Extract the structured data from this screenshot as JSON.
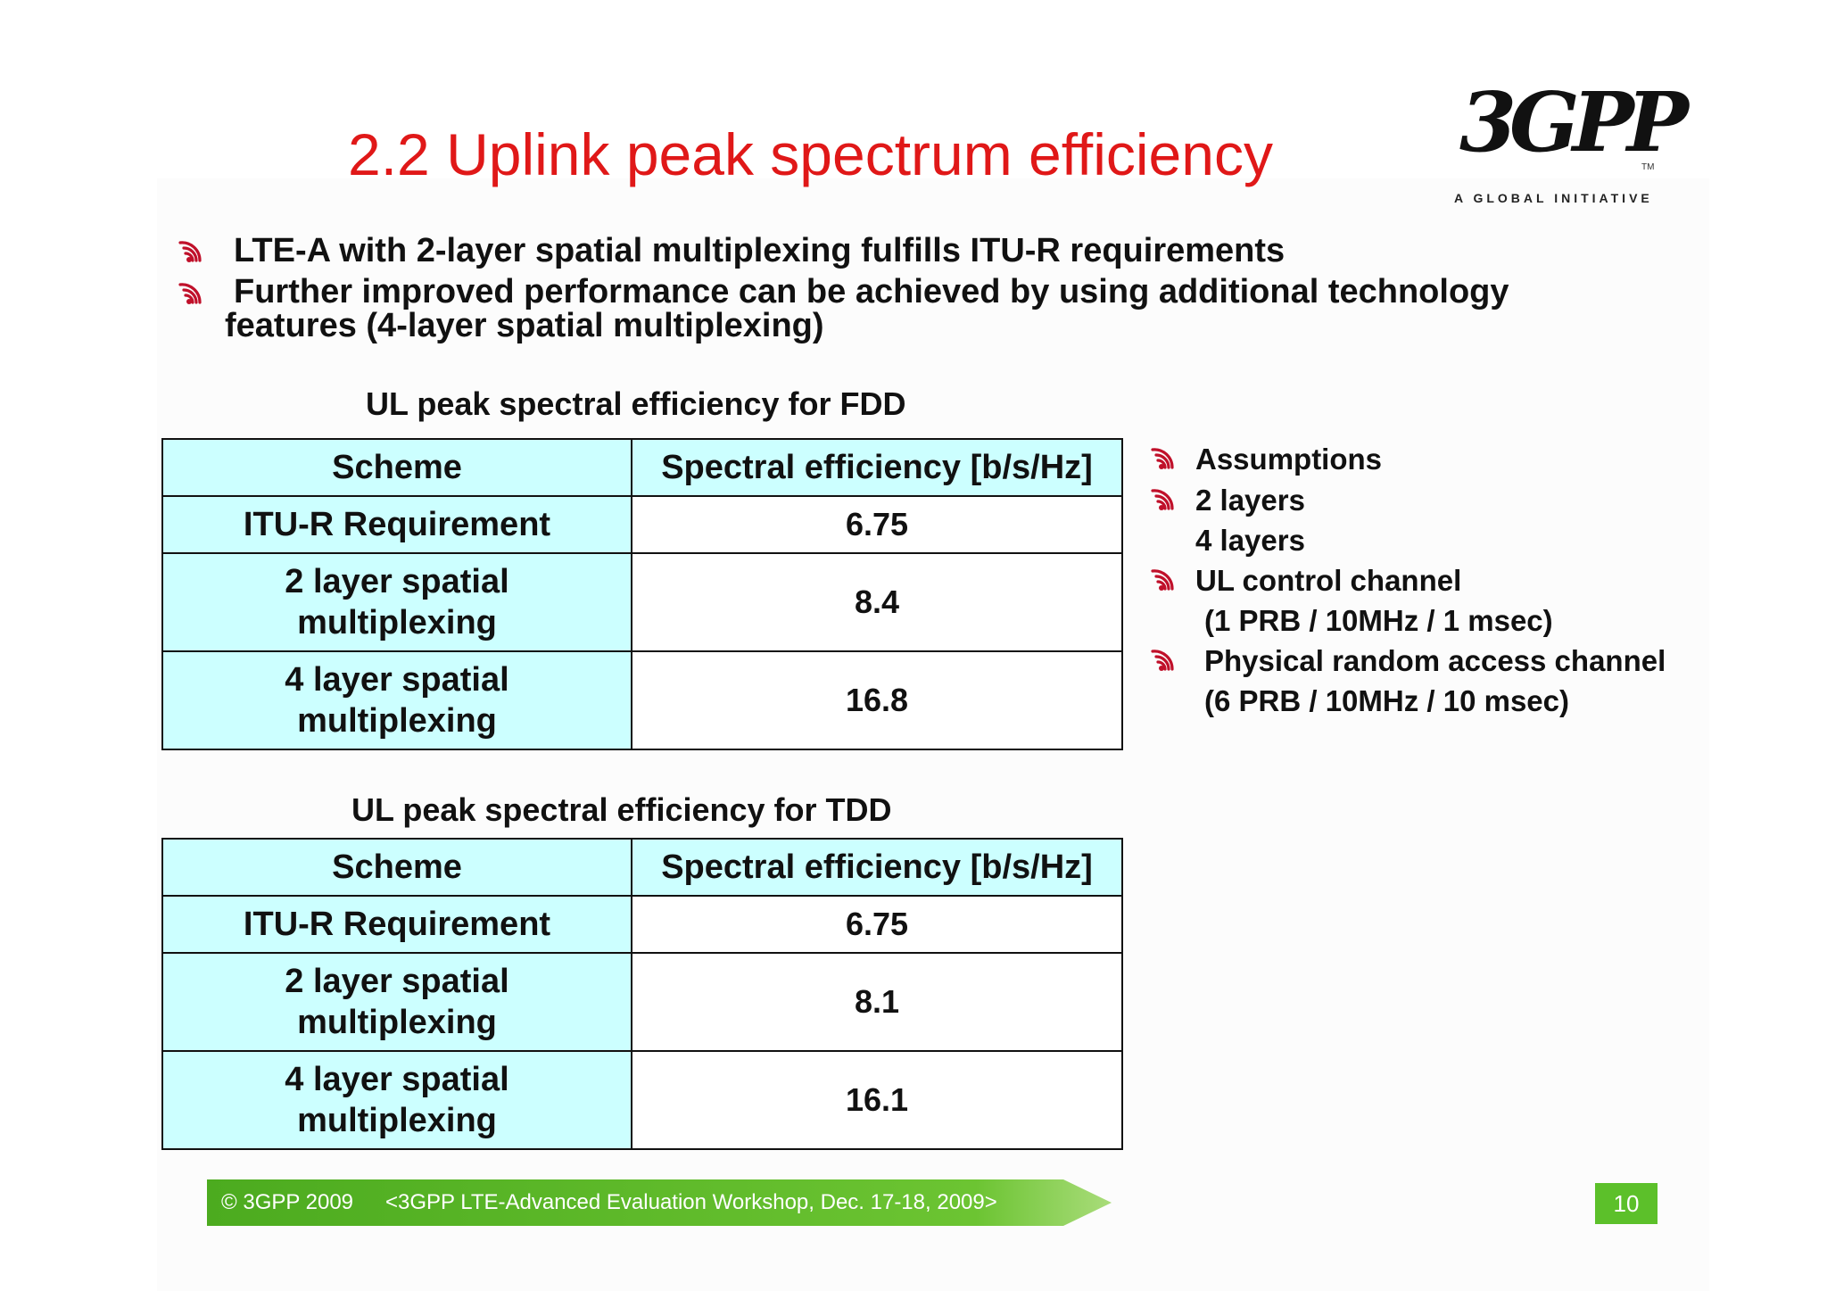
{
  "slide": {
    "title": "2.2 Uplink peak spectrum efficiency",
    "logo": {
      "text": "3GPP",
      "tagline": "A GLOBAL INITIATIVE",
      "tm": "TM"
    },
    "bullets": [
      "LTE-A with 2-layer spatial multiplexing fulfills ITU-R requirements",
      "Further improved performance can be achieved by using additional technology",
      "features  (4-layer spatial multiplexing)"
    ],
    "fdd": {
      "caption": "UL peak spectral efficiency for FDD",
      "headers": [
        "Scheme",
        "Spectral efficiency [b/s/Hz]"
      ],
      "rows": [
        {
          "scheme": [
            "ITU-R Requirement"
          ],
          "value": "6.75"
        },
        {
          "scheme": [
            "2 layer spatial",
            "multiplexing"
          ],
          "value": "8.4"
        },
        {
          "scheme": [
            "4 layer spatial",
            "multiplexing"
          ],
          "value": "16.8"
        }
      ]
    },
    "tdd": {
      "caption": "UL peak spectral efficiency for TDD",
      "headers": [
        "Scheme",
        "Spectral efficiency [b/s/Hz]"
      ],
      "rows": [
        {
          "scheme": [
            "ITU-R Requirement"
          ],
          "value": "6.75"
        },
        {
          "scheme": [
            "2 layer spatial",
            "multiplexing"
          ],
          "value": "8.1"
        },
        {
          "scheme": [
            "4 layer spatial",
            "multiplexing"
          ],
          "value": "16.1"
        }
      ]
    },
    "assumptions": [
      "Assumptions",
      "2 layers",
      "4 layers",
      "UL control channel",
      "(1 PRB / 10MHz / 1 msec)",
      "Physical random access channel",
      "(6 PRB / 10MHz / 10 msec)"
    ],
    "footer": {
      "copyright": "© 3GPP 2009",
      "event": "<3GPP LTE-Advanced Evaluation Workshop, Dec. 17-18, 2009>",
      "page_number": "10"
    },
    "colors": {
      "title": "#e01818",
      "table_header_bg": "#ccffff",
      "footer_green": "#5cc02a",
      "bullet_icon": "#c0102a"
    },
    "icons": {
      "bullet": "signal-wave-icon"
    }
  }
}
